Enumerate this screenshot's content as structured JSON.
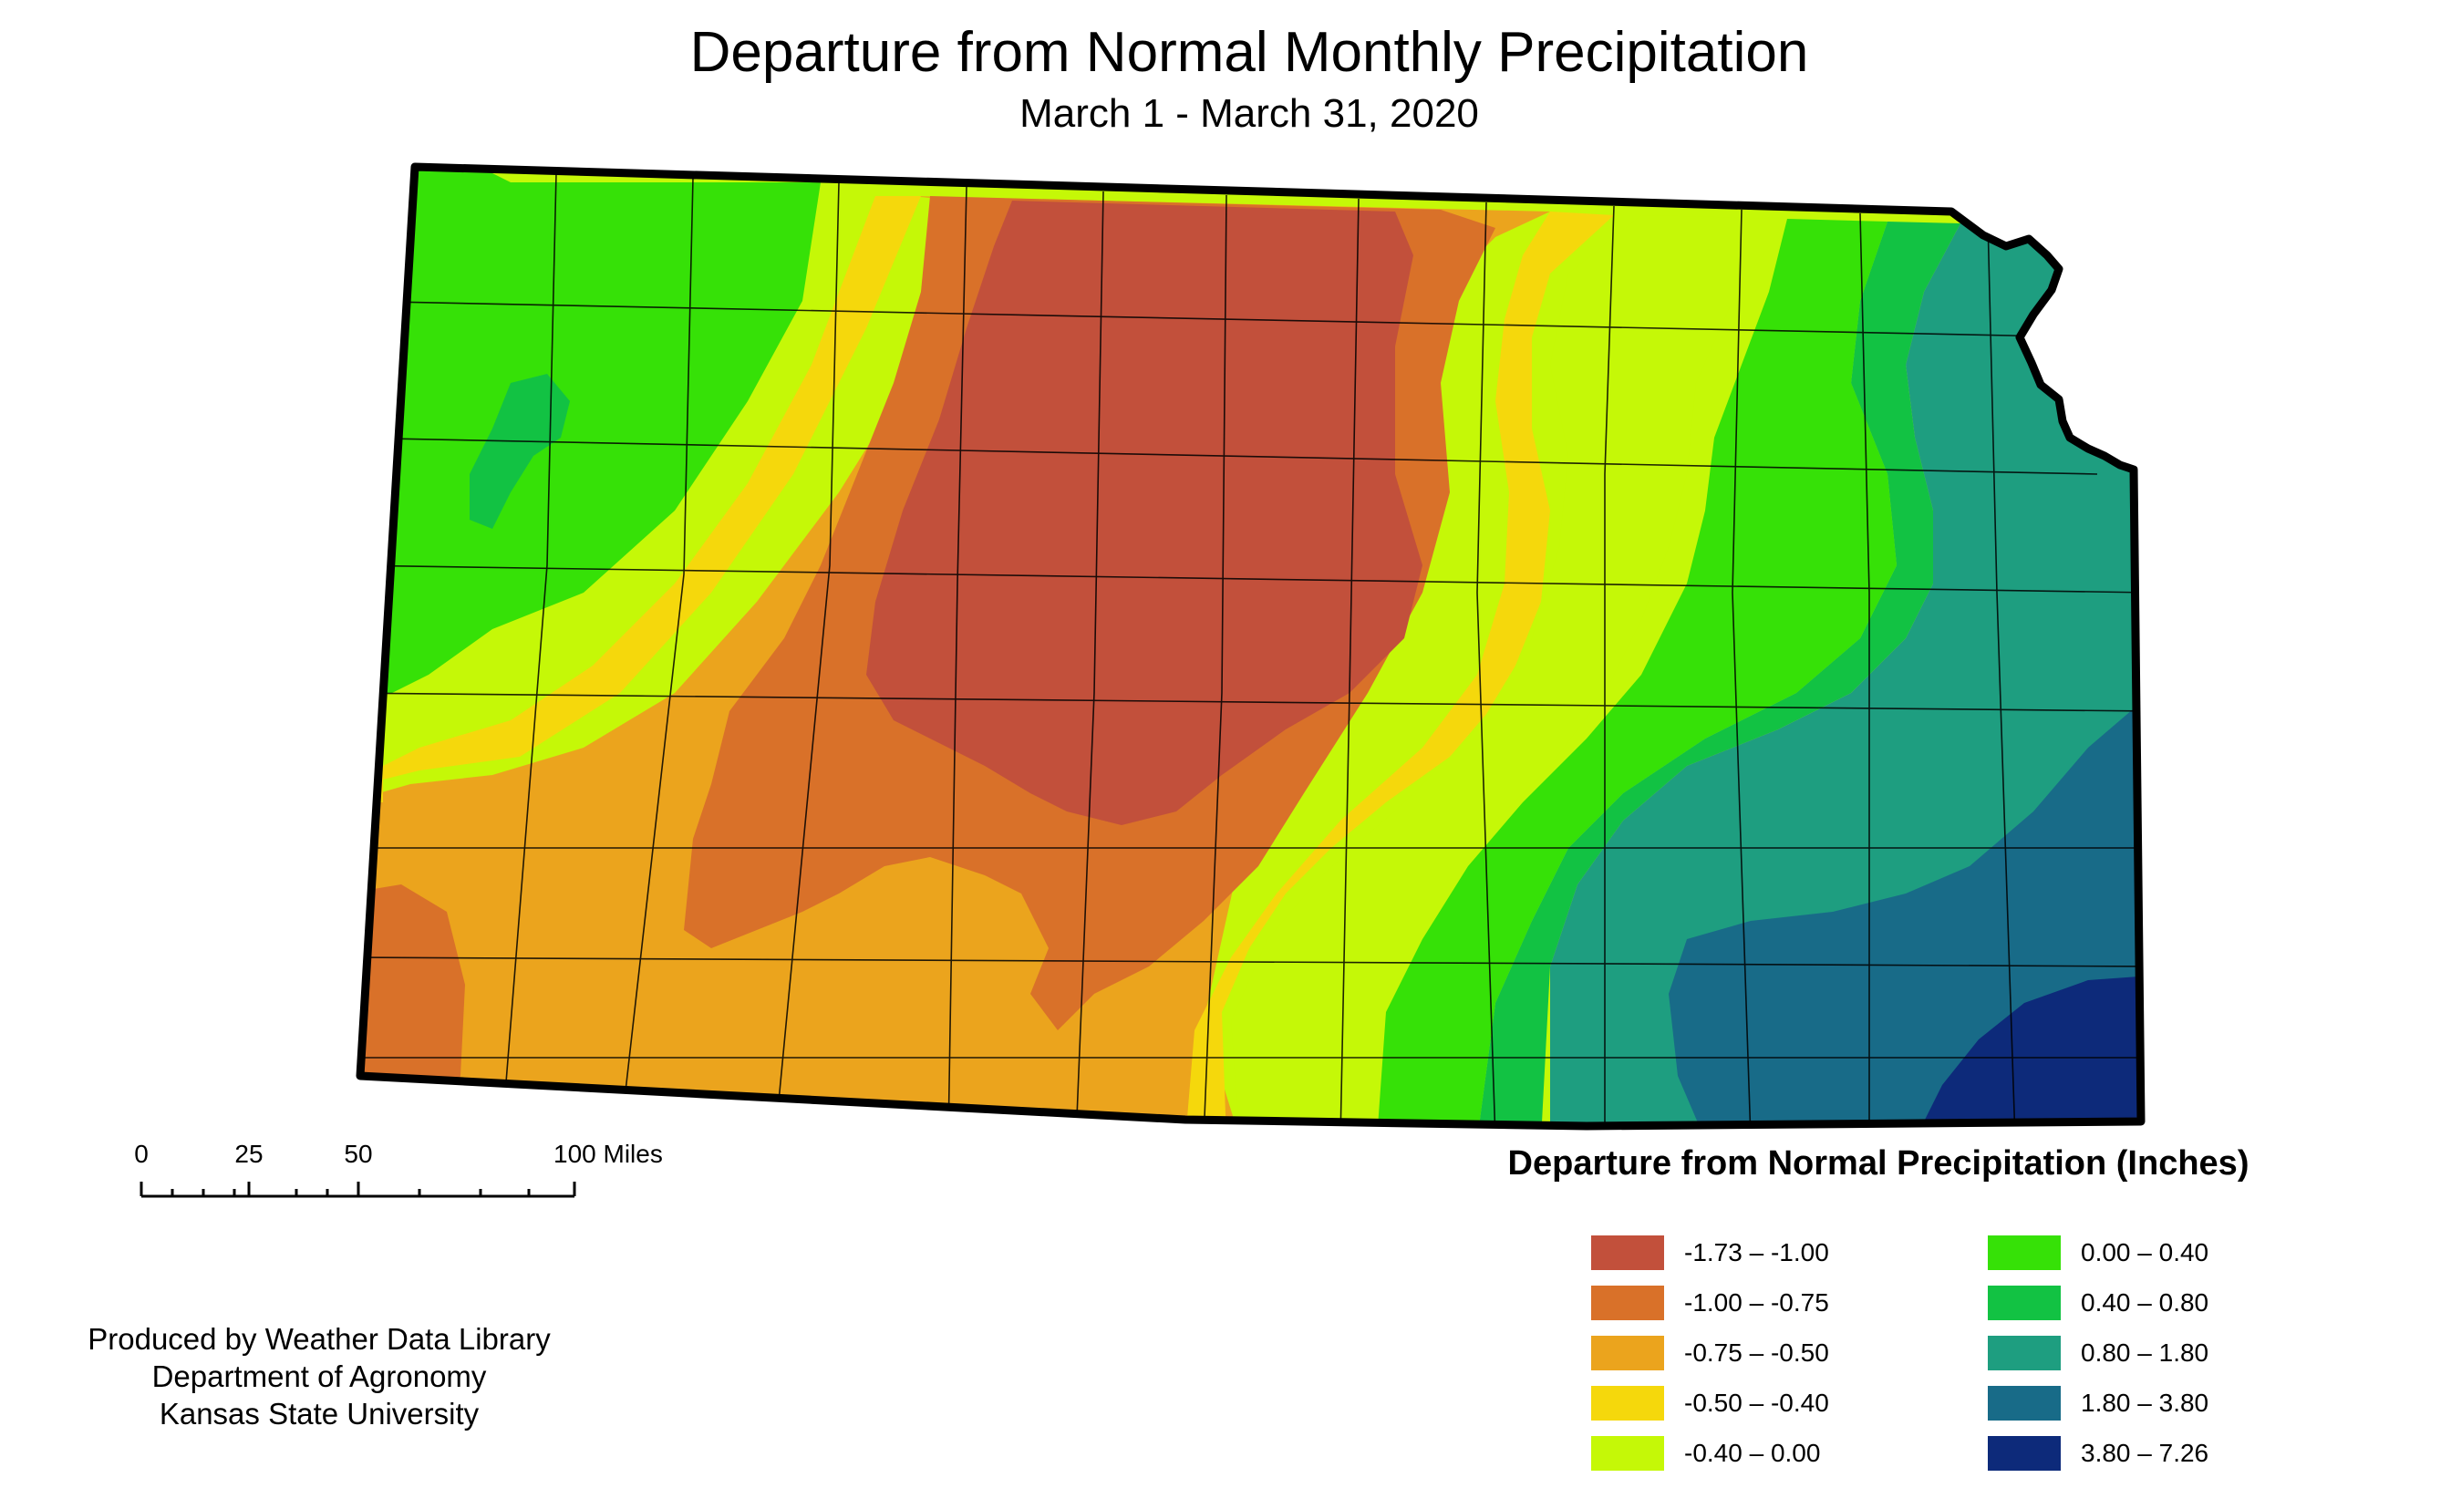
{
  "title": "Departure from Normal Monthly Precipitation",
  "subtitle": "March 1 - March 31, 2020",
  "legend": {
    "title": "Departure from Normal Precipitation (Inches)",
    "left_column": [
      {
        "label": "-1.73 – -1.00",
        "color": "#c2503b"
      },
      {
        "label": "-1.00 – -0.75",
        "color": "#d97129"
      },
      {
        "label": "-0.75 – -0.50",
        "color": "#eba41d"
      },
      {
        "label": "-0.50 – -0.40",
        "color": "#f5d80c"
      },
      {
        "label": "-0.40 – 0.00",
        "color": "#c5f807"
      }
    ],
    "right_column": [
      {
        "label": "0.00 – 0.40",
        "color": "#36e107"
      },
      {
        "label": "0.40 – 0.80",
        "color": "#12c243"
      },
      {
        "label": "0.80 – 1.80",
        "color": "#1e9e80"
      },
      {
        "label": "1.80 – 3.80",
        "color": "#186b88"
      },
      {
        "label": "3.80 – 7.26",
        "color": "#0d2a7a"
      }
    ]
  },
  "scale_bar": {
    "labels": [
      "0",
      "25",
      "50",
      "100 Miles"
    ]
  },
  "credits": [
    "Produced by Weather Data Library",
    "Department of Agronomy",
    "Kansas State University"
  ]
}
